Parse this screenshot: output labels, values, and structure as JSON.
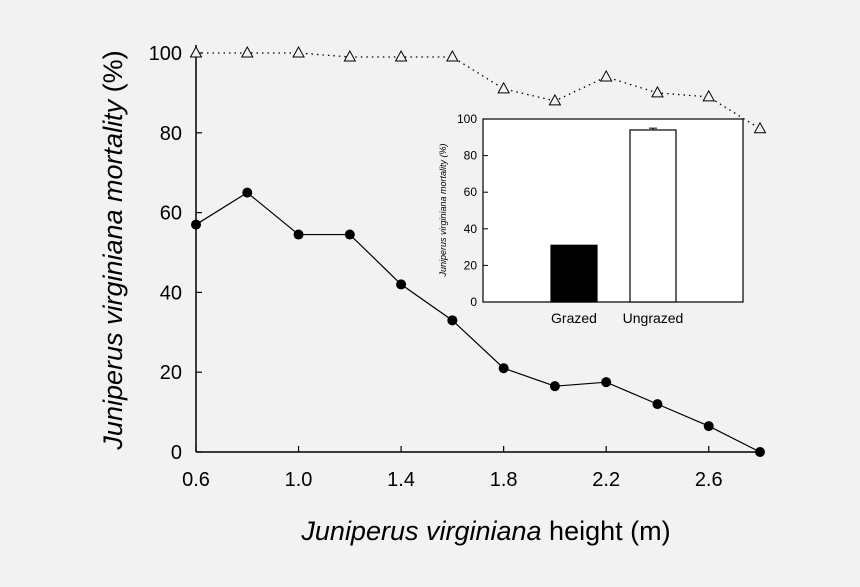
{
  "chart_data": [
    {
      "type": "line",
      "xlabel_italic": "Juniperus virginiana",
      "xlabel_rest": " height (m)",
      "ylabel_italic": "Juniperus virginiana",
      "ylabel_rest_italic": " mortality",
      "ylabel_rest": " (%)",
      "xlim": [
        0.6,
        2.8
      ],
      "ylim": [
        0,
        100
      ],
      "xticks": [
        0.6,
        1.0,
        1.4,
        1.8,
        2.2,
        2.6
      ],
      "xtick_labels": [
        "0.6",
        "1.0",
        "1.4",
        "1.8",
        "2.2",
        "2.6"
      ],
      "yticks": [
        0,
        20,
        40,
        60,
        80,
        100
      ],
      "ytick_labels": [
        "0",
        "20",
        "40",
        "60",
        "80",
        "100"
      ],
      "grid": false,
      "series": [
        {
          "marker": "open-triangle",
          "line_style": "dotted",
          "x": [
            0.6,
            0.8,
            1.0,
            1.2,
            1.4,
            1.6,
            1.8,
            2.0,
            2.2,
            2.4,
            2.6,
            2.8
          ],
          "y": [
            100,
            100,
            100,
            99,
            99,
            99,
            91,
            88,
            94,
            90,
            89,
            81
          ]
        },
        {
          "marker": "filled-circle",
          "line_style": "solid",
          "x": [
            0.6,
            0.8,
            1.0,
            1.2,
            1.4,
            1.6,
            1.8,
            2.0,
            2.2,
            2.4,
            2.6,
            2.8
          ],
          "y": [
            57,
            65,
            54.5,
            54.5,
            42,
            33,
            21,
            16.5,
            17.5,
            12,
            6.5,
            0
          ]
        }
      ]
    },
    {
      "type": "bar",
      "ylabel": "Juniperus virginiana mortality (%)",
      "categories": [
        "Grazed",
        "Ungrazed"
      ],
      "values": [
        31,
        94
      ],
      "error": [
        null,
        1
      ],
      "bar_colors": [
        "#000000",
        "#ffffff"
      ],
      "ylim": [
        0,
        100
      ],
      "yticks": [
        0,
        20,
        40,
        60,
        80,
        100
      ],
      "ytick_labels": [
        "0",
        "20",
        "40",
        "60",
        "80",
        "100"
      ]
    }
  ]
}
